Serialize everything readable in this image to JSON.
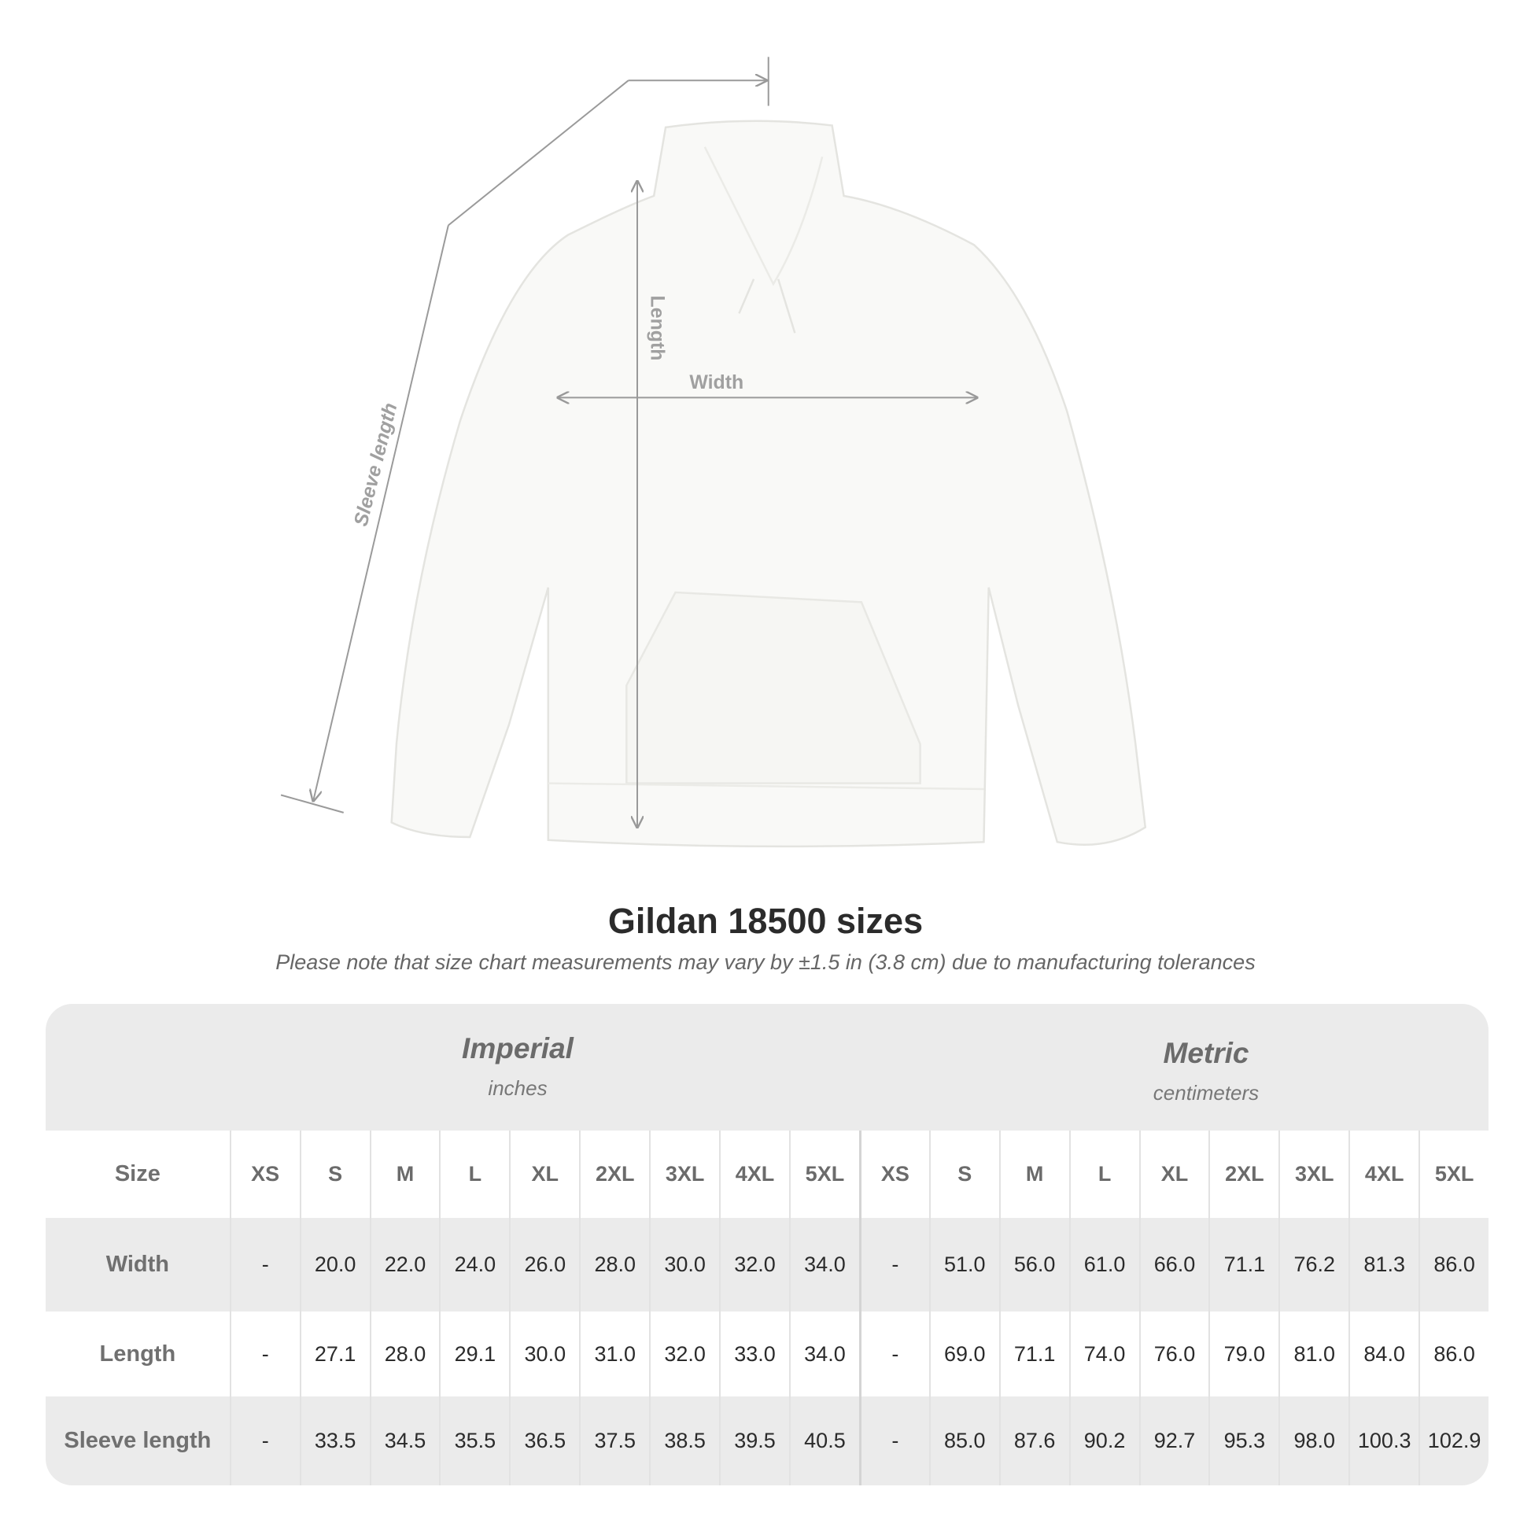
{
  "diagram": {
    "labels": {
      "length": "Length",
      "width": "Width",
      "sleeve": "Sleeve length"
    }
  },
  "title": "Gildan 18500 sizes",
  "note": "Please note that size chart measurements may vary by ±1.5 in (3.8 cm) due to manufacturing tolerances",
  "table": {
    "imperial": {
      "title": "Imperial",
      "unit": "inches"
    },
    "metric": {
      "title": "Metric",
      "unit": "centimeters"
    },
    "size_label": "Size",
    "sizes": [
      "XS",
      "S",
      "M",
      "L",
      "XL",
      "2XL",
      "3XL",
      "4XL",
      "5XL"
    ],
    "rows": [
      {
        "label": "Width",
        "imperial": [
          "-",
          "20.0",
          "22.0",
          "24.0",
          "26.0",
          "28.0",
          "30.0",
          "32.0",
          "34.0"
        ],
        "metric": [
          "-",
          "51.0",
          "56.0",
          "61.0",
          "66.0",
          "71.1",
          "76.2",
          "81.3",
          "86.0"
        ]
      },
      {
        "label": "Length",
        "imperial": [
          "-",
          "27.1",
          "28.0",
          "29.1",
          "30.0",
          "31.0",
          "32.0",
          "33.0",
          "34.0"
        ],
        "metric": [
          "-",
          "69.0",
          "71.1",
          "74.0",
          "76.0",
          "79.0",
          "81.0",
          "84.0",
          "86.0"
        ]
      },
      {
        "label": "Sleeve length",
        "imperial": [
          "-",
          "33.5",
          "34.5",
          "35.5",
          "36.5",
          "37.5",
          "38.5",
          "39.5",
          "40.5"
        ],
        "metric": [
          "-",
          "85.0",
          "87.6",
          "90.2",
          "92.7",
          "95.3",
          "98.0",
          "100.3",
          "102.9"
        ]
      }
    ]
  }
}
